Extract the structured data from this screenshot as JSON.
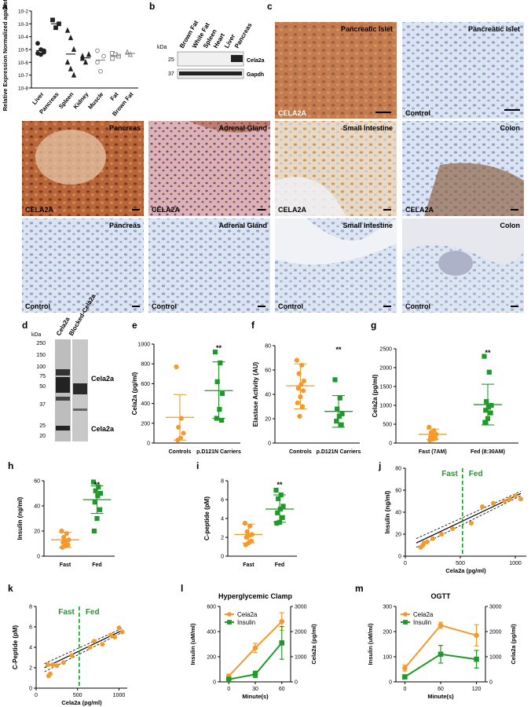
{
  "panel_letters": {
    "a": "a",
    "b": "b",
    "c": "c",
    "d": "d",
    "e": "e",
    "f": "f",
    "g": "g",
    "h": "h",
    "i": "i",
    "j": "j",
    "k": "k",
    "l": "l",
    "m": "m"
  },
  "colors": {
    "orange": "#f39a2a",
    "green": "#1f9a2a",
    "black": "#222222",
    "grey": "#888888"
  },
  "micro": {
    "tiles": [
      {
        "title": "Pancreatic Islet",
        "stain": "CELA2A"
      },
      {
        "title": "Pancreatic Islet",
        "stain": "Control"
      },
      {
        "title": "Pancreas",
        "stain": "CELA2A"
      },
      {
        "title": "Adrenal Gland",
        "stain": "CELA2A"
      },
      {
        "title": "Small Intestine",
        "stain": "CELA2A"
      },
      {
        "title": "Colon",
        "stain": "CELA2A"
      },
      {
        "title": "Pancreas",
        "stain": "Control"
      },
      {
        "title": "Adrenal Gland",
        "stain": "Control"
      },
      {
        "title": "Small Intestine",
        "stain": "Control"
      },
      {
        "title": "Colon",
        "stain": "Control"
      }
    ]
  },
  "blot_b": {
    "kda_label": "kDa",
    "lanes": [
      "Brown Fat",
      "White Fat",
      "Spleen",
      "Heart",
      "Liver",
      "Pancreas"
    ],
    "markers": [
      "25",
      "37"
    ],
    "band_labels": [
      "Cela2a",
      "Gapdh"
    ]
  },
  "blot_d": {
    "kda_label": "kDa",
    "lanes": [
      "Cela2a",
      "Blocked-Cela2a"
    ],
    "markers": [
      "250",
      "150",
      "100",
      "75",
      "50",
      "37",
      "25",
      "20"
    ],
    "band_labels": [
      "Cela2a",
      "Cela2a"
    ]
  },
  "chart_data": [
    {
      "panel": "a",
      "type": "scatter",
      "ylabel": "Relative Expression Normalized against 18s",
      "yscale": "log",
      "yticks": [
        "10-2",
        "10-3",
        "10-4",
        "10-5",
        "10-6",
        "10-7",
        "10-8"
      ],
      "categories": [
        "Liver",
        "Pancreas",
        "Spleen",
        "Kidney",
        "Muscle",
        "Fat",
        "Brown Fat"
      ],
      "series": [
        {
          "values": [
            [
              3e-05,
              1e-05,
              8e-06,
              5e-06,
              4e-06,
              6e-06
            ],
            [
              0.002,
              0.0005,
              0.001
            ],
            [
              0.0003,
              8e-05,
              1e-05,
              1e-06,
              3e-07,
              1e-07
            ],
            [
              3e-06,
              1e-06,
              4e-06,
              2e-06
            ],
            [
              8e-06,
              2e-07,
              3e-06,
              1e-06
            ],
            [
              5e-06,
              4e-06,
              3e-06,
              2e-06
            ],
            [
              6e-06,
              4e-06
            ]
          ]
        }
      ]
    },
    {
      "panel": "e",
      "type": "scatter",
      "ylabel": "Cela2a (pg/ml)",
      "ylim": [
        0,
        1000
      ],
      "yticks": [
        0,
        200,
        400,
        600,
        800,
        1000
      ],
      "categories": [
        "Controls",
        "p.D121N Carriers"
      ],
      "series": [
        {
          "values": [
            [
              770,
              250,
              160,
              100,
              50,
              30
            ],
            [
              920,
              810,
              620,
              500,
              340,
              250,
              230
            ]
          ]
        }
      ],
      "means": [
        260,
        530
      ],
      "sd": [
        [
          30,
          490
        ],
        [
          250,
          820
        ]
      ],
      "sig": [
        "",
        "**"
      ]
    },
    {
      "panel": "f",
      "type": "scatter",
      "ylabel": "Elastase Activity (AU)",
      "ylim": [
        0,
        80
      ],
      "yticks": [
        0,
        20,
        40,
        60,
        80
      ],
      "categories": [
        "Controls",
        "p.D121N Carriers"
      ],
      "series": [
        {
          "values": [
            [
              68,
              64,
              57,
              51,
              48,
              45,
              43,
              38,
              33,
              30,
              22
            ],
            [
              52,
              37,
              28,
              24,
              22,
              18,
              15
            ]
          ]
        }
      ],
      "means": [
        47,
        26
      ],
      "sd": [
        [
          28,
          65
        ],
        [
          13,
          39
        ]
      ],
      "sig": [
        "",
        "**"
      ]
    },
    {
      "panel": "g",
      "type": "scatter",
      "ylabel": "Cela2a (pg/ml)",
      "ylim": [
        0,
        2500
      ],
      "yticks": [
        0,
        500,
        1000,
        1500,
        2000,
        2500
      ],
      "categories": [
        "Fast (7AM)",
        "Fed (8:30AM)"
      ],
      "series": [
        {
          "values": [
            [
              420,
              330,
              280,
              230,
              200,
              160,
              120,
              100,
              80
            ],
            [
              2300,
              1880,
              1100,
              1000,
              950,
              870,
              800,
              650,
              550
            ]
          ]
        }
      ],
      "means": [
        230,
        1020
      ],
      "sd": [
        [
          90,
          370
        ],
        [
          480,
          1560
        ]
      ],
      "sig": [
        "",
        "**"
      ]
    },
    {
      "panel": "h",
      "type": "scatter",
      "ylabel": "Insulin (ng/ml)",
      "ylim": [
        0,
        60
      ],
      "yticks": [
        0,
        20,
        40,
        60
      ],
      "categories": [
        "Fast",
        "Fed"
      ],
      "series": [
        {
          "values": [
            [
              20,
              18,
              15,
              13,
              12,
              11,
              9,
              8,
              7
            ],
            [
              59,
              55,
              52,
              50,
              48,
              43,
              37,
              30,
              20
            ]
          ]
        }
      ],
      "means": [
        13,
        45
      ],
      "sd": [
        [
          7,
          19
        ],
        [
          34,
          56
        ]
      ],
      "sig": [
        "",
        "**"
      ]
    },
    {
      "panel": "i",
      "type": "scatter",
      "ylabel": "C-peptide (pM)",
      "ylim": [
        0,
        8
      ],
      "yticks": [
        0,
        2,
        4,
        6,
        8
      ],
      "categories": [
        "Fast",
        "Fed"
      ],
      "series": [
        {
          "values": [
            [
              3.5,
              3.2,
              2.6,
              2.3,
              2.2,
              2.0,
              1.6,
              1.4,
              1.2
            ],
            [
              7.0,
              6.5,
              6.1,
              5.3,
              5.0,
              4.6,
              4.1,
              3.6,
              3.5
            ]
          ]
        }
      ],
      "means": [
        2.3,
        5.0
      ],
      "sd": [
        [
          1.4,
          3.4
        ],
        [
          3.6,
          6.5
        ]
      ],
      "sig": [
        "",
        "**"
      ]
    },
    {
      "panel": "j",
      "type": "line",
      "xlabel": "Cela2a (pg/ml)",
      "ylabel": "Insulin (ng/ml)",
      "xlim": [
        0,
        1100
      ],
      "ylim": [
        0,
        80
      ],
      "xticks": [
        0,
        500,
        1000
      ],
      "yticks": [
        0,
        20,
        40,
        60,
        80
      ],
      "threshold": 520,
      "region_labels": [
        "Fast",
        "Fed"
      ],
      "points": [
        [
          140,
          8
        ],
        [
          160,
          10
        ],
        [
          170,
          12
        ],
        [
          200,
          13
        ],
        [
          250,
          16
        ],
        [
          330,
          20
        ],
        [
          430,
          25
        ],
        [
          600,
          30
        ],
        [
          700,
          45
        ],
        [
          800,
          48
        ],
        [
          900,
          50
        ],
        [
          950,
          52
        ],
        [
          1000,
          55
        ],
        [
          1050,
          52
        ]
      ],
      "fit": [
        [
          100,
          12
        ],
        [
          1050,
          57
        ]
      ]
    },
    {
      "panel": "k",
      "type": "line",
      "xlabel": "Cela2a (pg/ml)",
      "ylabel": "C-Peptide (pM)",
      "xlim": [
        0,
        1100
      ],
      "ylim": [
        0,
        8
      ],
      "xticks": [
        0,
        500,
        1000
      ],
      "yticks": [
        0,
        2,
        4,
        6,
        8
      ],
      "threshold": 520,
      "region_labels": [
        "Fast",
        "Fed"
      ],
      "points": [
        [
          140,
          2.3
        ],
        [
          150,
          1.2
        ],
        [
          170,
          1.4
        ],
        [
          200,
          2.3
        ],
        [
          250,
          2.2
        ],
        [
          330,
          2.5
        ],
        [
          430,
          3.2
        ],
        [
          650,
          4.0
        ],
        [
          700,
          4.6
        ],
        [
          800,
          4.3
        ],
        [
          900,
          5.2
        ],
        [
          950,
          5.0
        ],
        [
          1000,
          5.9
        ],
        [
          1040,
          5.5
        ]
      ],
      "fit": [
        [
          100,
          2.0
        ],
        [
          1050,
          5.7
        ]
      ]
    },
    {
      "panel": "l",
      "type": "line",
      "title": "Hyperglycemic Clamp",
      "xlabel": "Minute(s)",
      "ylabel": "Insulin (uM/ml)",
      "ylabel2": "Cela2a (pg/ml)",
      "xlim": [
        -10,
        70
      ],
      "ylim": [
        0,
        600
      ],
      "ylim2": [
        0,
        3000
      ],
      "xticks": [
        0,
        30,
        60
      ],
      "yticks": [
        0,
        200,
        400,
        600
      ],
      "yticks2": [
        0,
        1000,
        2000,
        3000
      ],
      "x": [
        0,
        30,
        60
      ],
      "series": [
        {
          "name": "Cela2a",
          "axis": "right",
          "values": [
            230,
            1350,
            2400
          ],
          "err": [
            80,
            180,
            350
          ]
        },
        {
          "name": "Insulin",
          "axis": "left",
          "values": [
            20,
            60,
            310
          ],
          "err": [
            15,
            25,
            130
          ]
        }
      ]
    },
    {
      "panel": "m",
      "type": "line",
      "title": "OGTT",
      "xlabel": "Minute(s)",
      "ylabel": "Insulin (uM/ml)",
      "ylabel2": "Cela2a (pg/ml)",
      "xlim": [
        -15,
        135
      ],
      "ylim": [
        0,
        300
      ],
      "ylim2": [
        0,
        3000
      ],
      "xticks": [
        0,
        60,
        120
      ],
      "yticks": [
        0,
        100,
        200,
        300
      ],
      "yticks2": [
        0,
        1000,
        2000,
        3000
      ],
      "x": [
        0,
        60,
        120
      ],
      "series": [
        {
          "name": "Cela2a",
          "axis": "right",
          "values": [
            550,
            2250,
            1850
          ],
          "err": [
            120,
            120,
            420
          ]
        },
        {
          "name": "Insulin",
          "axis": "left",
          "values": [
            20,
            110,
            90
          ],
          "err": [
            8,
            35,
            35
          ]
        }
      ]
    }
  ]
}
